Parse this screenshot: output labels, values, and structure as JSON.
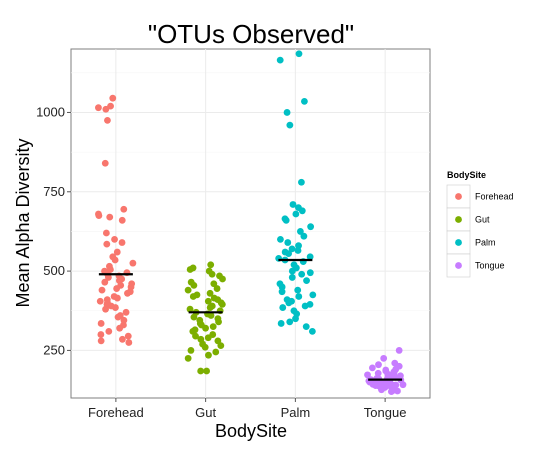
{
  "chart_data": {
    "type": "scatter",
    "title": "\"OTUs Observed\"",
    "xlabel": "BodySite",
    "ylabel": "Mean Alpha Diversity",
    "categories": [
      "Forehead",
      "Gut",
      "Palm",
      "Tongue"
    ],
    "ylim": [
      100,
      1200
    ],
    "yticks": [
      250,
      500,
      750,
      1000
    ],
    "grid": true,
    "legend": {
      "title": "BodySite",
      "position": "right"
    },
    "colors": {
      "Forehead": "#F8766D",
      "Gut": "#7CAE00",
      "Palm": "#00BFC4",
      "Tongue": "#C77CFF",
      "mean_line": "#000000"
    },
    "series": [
      {
        "name": "Forehead",
        "mean": 490,
        "values": [
          1045,
          1015,
          1020,
          1010,
          975,
          840,
          695,
          680,
          675,
          670,
          660,
          620,
          600,
          590,
          585,
          560,
          545,
          535,
          525,
          515,
          505,
          500,
          495,
          490,
          485,
          480,
          475,
          470,
          465,
          460,
          455,
          450,
          445,
          440,
          435,
          430,
          420,
          415,
          410,
          405,
          400,
          395,
          390,
          385,
          380,
          370,
          360,
          355,
          345,
          335,
          330,
          320,
          310,
          300,
          295,
          285,
          280,
          275
        ]
      },
      {
        "name": "Gut",
        "mean": 370,
        "values": [
          520,
          510,
          505,
          500,
          490,
          485,
          475,
          465,
          460,
          455,
          445,
          440,
          430,
          425,
          420,
          415,
          410,
          405,
          400,
          395,
          390,
          385,
          380,
          375,
          370,
          365,
          360,
          355,
          350,
          345,
          340,
          335,
          330,
          325,
          320,
          315,
          310,
          300,
          295,
          290,
          285,
          280,
          270,
          265,
          260,
          250,
          245,
          235,
          225,
          185,
          185
        ]
      },
      {
        "name": "Palm",
        "mean": 535,
        "values": [
          1185,
          1165,
          1035,
          1000,
          960,
          780,
          710,
          700,
          690,
          680,
          665,
          660,
          640,
          625,
          610,
          600,
          590,
          580,
          570,
          565,
          560,
          555,
          545,
          540,
          535,
          530,
          520,
          510,
          500,
          495,
          490,
          480,
          470,
          460,
          450,
          440,
          435,
          425,
          420,
          410,
          405,
          400,
          395,
          390,
          385,
          375,
          365,
          350,
          340,
          335,
          325,
          310
        ]
      },
      {
        "name": "Tongue",
        "mean": 158,
        "values": [
          250,
          225,
          210,
          205,
          200,
          195,
          190,
          188,
          185,
          182,
          180,
          178,
          175,
          173,
          170,
          168,
          166,
          165,
          163,
          162,
          160,
          159,
          158,
          157,
          156,
          155,
          154,
          153,
          152,
          150,
          149,
          148,
          147,
          146,
          145,
          144,
          143,
          142,
          141,
          140,
          139,
          138,
          137,
          135,
          133,
          132,
          130,
          128,
          126,
          125,
          122,
          120
        ]
      }
    ]
  }
}
